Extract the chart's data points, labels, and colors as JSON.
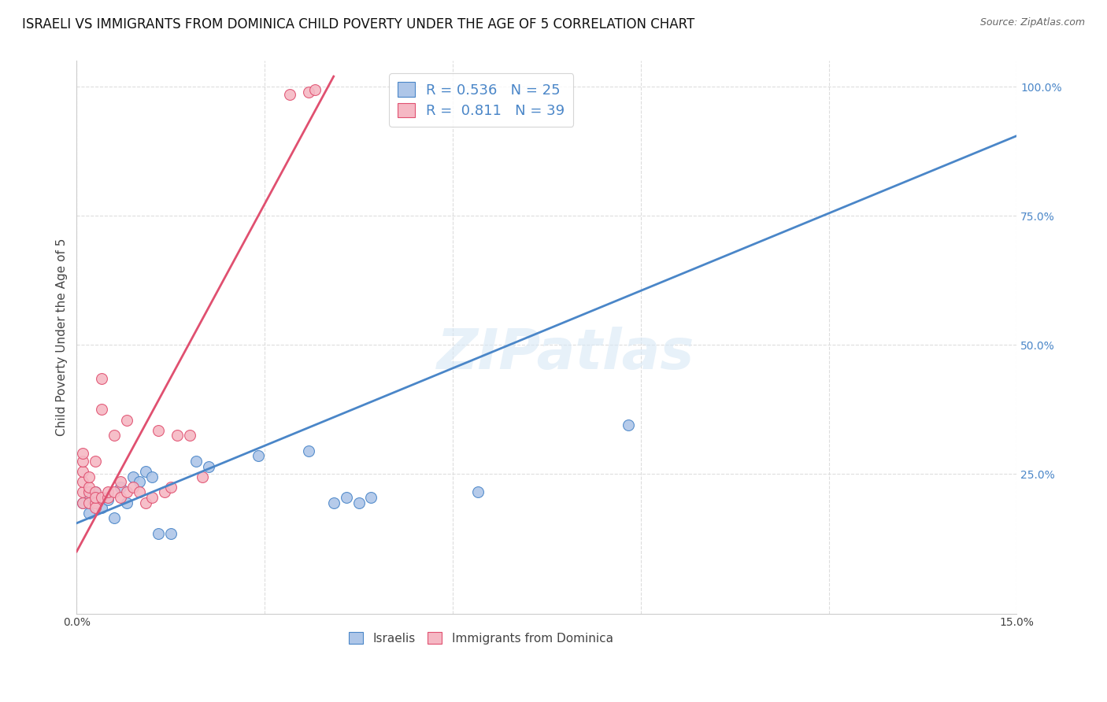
{
  "title": "ISRAELI VS IMMIGRANTS FROM DOMINICA CHILD POVERTY UNDER THE AGE OF 5 CORRELATION CHART",
  "source": "Source: ZipAtlas.com",
  "ylabel": "Child Poverty Under the Age of 5",
  "xlim": [
    0.0,
    0.15
  ],
  "ylim": [
    -0.02,
    1.05
  ],
  "xticks": [
    0.0,
    0.03,
    0.06,
    0.09,
    0.12,
    0.15
  ],
  "xticklabels": [
    "0.0%",
    "",
    "",
    "",
    "",
    "15.0%"
  ],
  "yticks_right": [
    0.25,
    0.5,
    0.75,
    1.0
  ],
  "yticklabels_right": [
    "25.0%",
    "50.0%",
    "75.0%",
    "100.0%"
  ],
  "watermark": "ZIPatlas",
  "legend_israeli_r": "0.536",
  "legend_israeli_n": "25",
  "legend_dominica_r": "0.811",
  "legend_dominica_n": "39",
  "israeli_color": "#aec6e8",
  "dominica_color": "#f5b8c4",
  "israeli_line_color": "#4a86c8",
  "dominica_line_color": "#e05070",
  "title_fontsize": 12,
  "axis_label_fontsize": 11,
  "tick_fontsize": 10,
  "background_color": "#ffffff",
  "grid_color": "#dddddd",
  "israelis_scatter": [
    [
      0.001,
      0.195
    ],
    [
      0.002,
      0.175
    ],
    [
      0.002,
      0.21
    ],
    [
      0.003,
      0.215
    ],
    [
      0.004,
      0.185
    ],
    [
      0.005,
      0.2
    ],
    [
      0.006,
      0.165
    ],
    [
      0.007,
      0.225
    ],
    [
      0.008,
      0.195
    ],
    [
      0.009,
      0.245
    ],
    [
      0.01,
      0.235
    ],
    [
      0.011,
      0.255
    ],
    [
      0.012,
      0.245
    ],
    [
      0.013,
      0.135
    ],
    [
      0.015,
      0.135
    ],
    [
      0.019,
      0.275
    ],
    [
      0.021,
      0.265
    ],
    [
      0.029,
      0.285
    ],
    [
      0.037,
      0.295
    ],
    [
      0.041,
      0.195
    ],
    [
      0.043,
      0.205
    ],
    [
      0.045,
      0.195
    ],
    [
      0.047,
      0.205
    ],
    [
      0.064,
      0.215
    ],
    [
      0.088,
      0.345
    ]
  ],
  "dominica_scatter": [
    [
      0.001,
      0.195
    ],
    [
      0.001,
      0.215
    ],
    [
      0.001,
      0.235
    ],
    [
      0.001,
      0.255
    ],
    [
      0.001,
      0.275
    ],
    [
      0.001,
      0.29
    ],
    [
      0.002,
      0.195
    ],
    [
      0.002,
      0.215
    ],
    [
      0.002,
      0.225
    ],
    [
      0.002,
      0.245
    ],
    [
      0.003,
      0.195
    ],
    [
      0.003,
      0.275
    ],
    [
      0.003,
      0.215
    ],
    [
      0.003,
      0.185
    ],
    [
      0.003,
      0.205
    ],
    [
      0.004,
      0.375
    ],
    [
      0.004,
      0.205
    ],
    [
      0.004,
      0.435
    ],
    [
      0.005,
      0.205
    ],
    [
      0.005,
      0.215
    ],
    [
      0.006,
      0.215
    ],
    [
      0.006,
      0.325
    ],
    [
      0.007,
      0.205
    ],
    [
      0.007,
      0.235
    ],
    [
      0.008,
      0.355
    ],
    [
      0.008,
      0.215
    ],
    [
      0.009,
      0.225
    ],
    [
      0.01,
      0.215
    ],
    [
      0.011,
      0.195
    ],
    [
      0.012,
      0.205
    ],
    [
      0.013,
      0.335
    ],
    [
      0.014,
      0.215
    ],
    [
      0.015,
      0.225
    ],
    [
      0.016,
      0.325
    ],
    [
      0.018,
      0.325
    ],
    [
      0.02,
      0.245
    ],
    [
      0.034,
      0.985
    ],
    [
      0.037,
      0.99
    ],
    [
      0.038,
      0.995
    ]
  ],
  "israeli_line_x": [
    0.0,
    0.15
  ],
  "israeli_line_y": [
    0.155,
    0.905
  ],
  "dominica_line_x": [
    0.0,
    0.041
  ],
  "dominica_line_y": [
    0.1,
    1.02
  ]
}
